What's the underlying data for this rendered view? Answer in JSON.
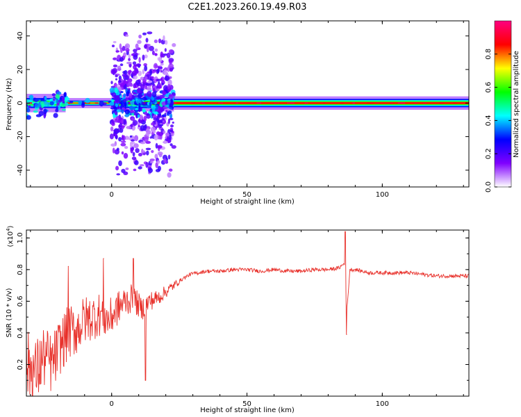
{
  "title": "C2E1.2023.260.19.49.R03",
  "chart_data": [
    {
      "type": "heatmap",
      "xlabel": "Height of straight line (km)",
      "ylabel": "Frequency (Hz)",
      "xlim": [
        -31.5,
        132
      ],
      "ylim": [
        -50,
        49
      ],
      "xticks": [
        0,
        50,
        100
      ],
      "yticks": [
        -40,
        -20,
        0,
        20,
        40
      ],
      "grid": false,
      "band_center_hz": 0,
      "segments": [
        {
          "x_start": -31.5,
          "x_end": -17,
          "halfwidth_hz": 4,
          "intensity": 0.45,
          "scatter": "moderate"
        },
        {
          "x_start": -17,
          "x_end": 0,
          "halfwidth_hz": 1.5,
          "intensity": 0.8,
          "scatter": "low"
        },
        {
          "x_start": 0,
          "x_end": 23,
          "halfwidth_hz": 45,
          "intensity": 0.25,
          "scatter": "broadband"
        },
        {
          "x_start": 23,
          "x_end": 132,
          "halfwidth_hz": 2.5,
          "intensity": 0.85,
          "scatter": "none"
        }
      ],
      "colorbar": {
        "label": "Normalized spectral amplitude",
        "range": [
          0.0,
          1.0
        ],
        "ticks": [
          0.0,
          0.2,
          0.4,
          0.6,
          0.8
        ],
        "colors": [
          "#ffffff",
          "#8000ff",
          "#0000ff",
          "#00ffff",
          "#00ff00",
          "#ffff00",
          "#ff0000",
          "#ff0080"
        ]
      }
    },
    {
      "type": "line",
      "xlabel": "Height of straight line (km)",
      "ylabel": "SNR (10 * v/v)",
      "yscale_label": "(x10",
      "yscale_exp": "4",
      "yscale_close": ")",
      "xlim": [
        -31.5,
        132
      ],
      "ylim": [
        0.0,
        1.05
      ],
      "xticks": [
        0,
        50,
        100
      ],
      "yticks": [
        0.2,
        0.4,
        0.6,
        0.8,
        1.0
      ],
      "grid": false,
      "color": "#e8302a",
      "x": [
        -31,
        -28,
        -25,
        -22,
        -19,
        -16,
        -13,
        -10,
        -7,
        -4,
        -1,
        2,
        5,
        8,
        11,
        14,
        17,
        20,
        23,
        26,
        29,
        32,
        35,
        40,
        45,
        50,
        55,
        60,
        65,
        70,
        75,
        80,
        84,
        86,
        87,
        88,
        90,
        95,
        100,
        105,
        110,
        115,
        120,
        125,
        130,
        132
      ],
      "y": [
        0.2,
        0.15,
        0.25,
        0.2,
        0.32,
        0.4,
        0.42,
        0.48,
        0.5,
        0.52,
        0.48,
        0.55,
        0.6,
        0.62,
        0.55,
        0.6,
        0.62,
        0.66,
        0.7,
        0.74,
        0.77,
        0.78,
        0.79,
        0.79,
        0.8,
        0.8,
        0.79,
        0.8,
        0.79,
        0.79,
        0.8,
        0.8,
        0.81,
        0.84,
        0.55,
        0.8,
        0.8,
        0.78,
        0.78,
        0.78,
        0.78,
        0.77,
        0.76,
        0.76,
        0.76,
        0.76
      ],
      "spikes": [
        {
          "x": 12.5,
          "y": 0.1
        },
        {
          "x": 86.8,
          "y": 0.39
        },
        {
          "x": 86.3,
          "y": 1.04
        },
        {
          "x": -3,
          "y": 0.87
        },
        {
          "x": 8,
          "y": 0.87
        },
        {
          "x": -16,
          "y": 0.82
        }
      ]
    }
  ]
}
